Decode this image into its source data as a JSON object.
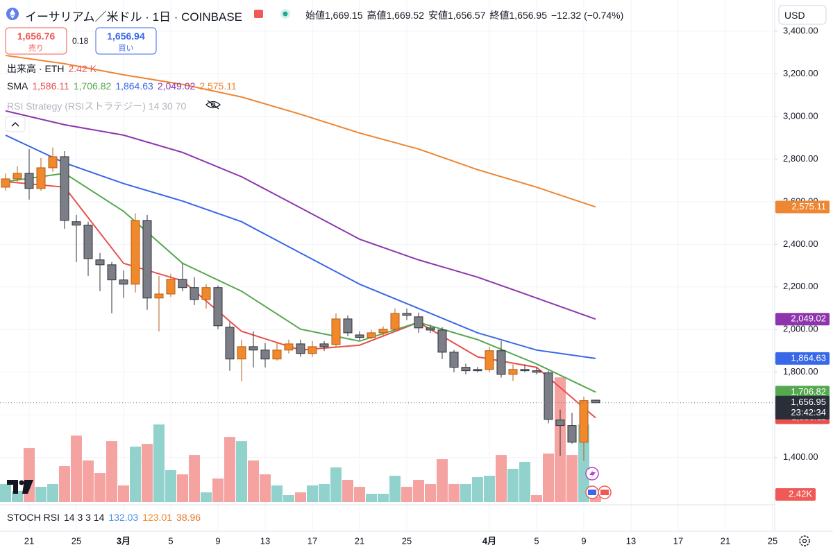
{
  "header": {
    "title": "イーサリアム／米ドル · 1日 · COINBASE",
    "ohlc": [
      {
        "label": "始値",
        "value": "1,669.15"
      },
      {
        "label": "高値",
        "value": "1,669.52"
      },
      {
        "label": "安値",
        "value": "1,656.57"
      },
      {
        "label": "終値",
        "value": "1,656.95"
      }
    ],
    "change": "−12.32 (−0.74%)",
    "currency": "USD",
    "sell": {
      "price": "1,656.76",
      "label": "売り"
    },
    "spread": 0.18,
    "buy": {
      "price": "1,656.94",
      "label": "買い"
    },
    "indicator": "RSI Strategy (RSIストラテジー) 14 30 70"
  },
  "chart_data": {
    "type": "candlestick",
    "x": [
      "02-19",
      "02-20",
      "02-21",
      "02-22",
      "02-23",
      "02-24",
      "02-25",
      "02-26",
      "02-27",
      "02-28",
      "03-01",
      "03-02",
      "03-03",
      "03-04",
      "03-05",
      "03-06",
      "03-07",
      "03-08",
      "03-09",
      "03-10",
      "03-11",
      "03-12",
      "03-13",
      "03-14",
      "03-15",
      "03-16",
      "03-17",
      "03-18",
      "03-19",
      "03-20",
      "03-21",
      "03-22",
      "03-23",
      "03-24",
      "03-25",
      "03-26",
      "03-27",
      "03-28",
      "03-29",
      "03-30",
      "03-31",
      "04-01",
      "04-02",
      "04-03",
      "04-04",
      "04-05",
      "04-06",
      "04-07",
      "04-08",
      "04-09",
      "04-10"
    ],
    "open": [
      2668,
      2707,
      2733,
      2662,
      2759,
      2811,
      2506,
      2490,
      2327,
      2304,
      2233,
      2213,
      2512,
      2148,
      2167,
      2236,
      2197,
      2141,
      2197,
      2011,
      1862,
      1920,
      1904,
      1862,
      1904,
      1933,
      1888,
      1933,
      1930,
      2050,
      1975,
      1963,
      1985,
      2002,
      2076,
      2060,
      2008,
      1998,
      1894,
      1823,
      1813,
      1813,
      1901,
      1790,
      1813,
      1807,
      1797,
      1576,
      1550,
      1472,
      1669.15
    ],
    "high": [
      2733,
      2766,
      2847,
      2805,
      2854,
      2837,
      2538,
      2506,
      2359,
      2317,
      2278,
      2545,
      2538,
      2252,
      2262,
      2311,
      2246,
      2213,
      2207,
      2034,
      1953,
      1992,
      1937,
      1937,
      1953,
      1953,
      1946,
      1946,
      2076,
      2067,
      1992,
      1998,
      2015,
      2099,
      2099,
      2080,
      2020,
      2011,
      1904,
      1840,
      1825,
      1920,
      1946,
      1837,
      1837,
      1822,
      1807,
      1625,
      1610,
      1686,
      1669.52
    ],
    "low": [
      2652,
      2694,
      2610,
      2652,
      2740,
      2473,
      2317,
      2252,
      2180,
      2076,
      2148,
      2174,
      2093,
      1992,
      2154,
      2180,
      2115,
      2099,
      2002,
      1807,
      1758,
      1823,
      1823,
      1855,
      1888,
      1872,
      1872,
      1900,
      1920,
      1969,
      1950,
      1955,
      1970,
      1995,
      2045,
      1985,
      1985,
      1862,
      1800,
      1790,
      1800,
      1800,
      1775,
      1760,
      1800,
      1790,
      1560,
      1407,
      1465,
      1384,
      1656.57
    ],
    "close": [
      2707,
      2733,
      2662,
      2759,
      2811,
      2512,
      2490,
      2333,
      2304,
      2233,
      2213,
      2512,
      2148,
      2167,
      2236,
      2197,
      2141,
      2197,
      2018,
      1862,
      1920,
      1904,
      1862,
      1904,
      1933,
      1888,
      1920,
      1920,
      2050,
      1985,
      1963,
      1985,
      2002,
      2076,
      2067,
      2008,
      1998,
      1894,
      1823,
      1807,
      1807,
      1901,
      1790,
      1813,
      1807,
      1800,
      1579,
      1550,
      1472,
      1667,
      1656.95
    ],
    "up_color": "#f0892c",
    "up_border": "#b85a14",
    "down_color": "#7b7e86",
    "down_border": "#2f3238",
    "last_label": {
      "close": "1,656.95",
      "countdown": "23:42:34",
      "color": "#2a2e39"
    },
    "ylim": [
      1178,
      3546
    ],
    "yticks": [
      {
        "value": 1400,
        "label": "1,400.00"
      },
      {
        "value": 1600,
        "label": "1,600.00"
      },
      {
        "value": 1800,
        "label": "1,800.00"
      },
      {
        "value": 2000,
        "label": "2,000.00"
      },
      {
        "value": 2200,
        "label": "2,200.00"
      },
      {
        "value": 2400,
        "label": "2,400.00"
      },
      {
        "value": 2600,
        "label": "2,600.00"
      },
      {
        "value": 2800,
        "label": "2,800.00"
      },
      {
        "value": 3000,
        "label": "3,000.00"
      },
      {
        "value": 3200,
        "label": "3,200.00"
      },
      {
        "value": 3400,
        "label": "3,400.00"
      }
    ],
    "xticks": [
      {
        "value": "02-21",
        "label": "21"
      },
      {
        "value": "02-25",
        "label": "25"
      },
      {
        "value": "03-01",
        "label": "3月"
      },
      {
        "value": "03-05",
        "label": "5"
      },
      {
        "value": "03-09",
        "label": "9"
      },
      {
        "value": "03-13",
        "label": "13"
      },
      {
        "value": "03-17",
        "label": "17"
      },
      {
        "value": "03-21",
        "label": "21"
      },
      {
        "value": "03-25",
        "label": "25"
      },
      {
        "value": "04-01",
        "label": "4月"
      },
      {
        "value": "04-05",
        "label": "5"
      },
      {
        "value": "04-09",
        "label": "9"
      },
      {
        "value": "04-13",
        "label": "13"
      },
      {
        "value": "04-17",
        "label": "17"
      },
      {
        "value": "04-21",
        "label": "21"
      },
      {
        "value": "04-25",
        "label": "25"
      }
    ],
    "grid": true,
    "sma": {
      "name": "SMA",
      "x": [
        "02-19",
        "02-24",
        "03-01",
        "03-06",
        "03-11",
        "03-16",
        "03-21",
        "03-26",
        "03-31",
        "04-05",
        "04-10"
      ],
      "series": [
        {
          "color": "#e8504b",
          "values": [
            2694,
            2668,
            2311,
            2229,
            1992,
            1904,
            1927,
            2034,
            1872,
            1823,
            1586.11
          ],
          "value_labels": [
            null,
            null,
            null,
            null,
            null,
            null,
            null,
            null,
            null,
            null,
            "1,586.11"
          ]
        },
        {
          "color": "#55a84f",
          "values": [
            2694,
            2733,
            2555,
            2311,
            2180,
            2002,
            1946,
            2034,
            1953,
            1839,
            1706.82
          ],
          "value_labels": [
            null,
            null,
            null,
            null,
            null,
            null,
            null,
            null,
            null,
            null,
            "1,706.82"
          ]
        },
        {
          "color": "#3868e8",
          "values": [
            2912,
            2782,
            2685,
            2603,
            2506,
            2359,
            2213,
            2099,
            1985,
            1904,
            1864.63
          ],
          "value_labels": [
            null,
            null,
            null,
            null,
            null,
            null,
            null,
            null,
            null,
            null,
            "1,864.63"
          ]
        },
        {
          "color": "#8e35ad",
          "values": [
            3026,
            2961,
            2912,
            2831,
            2717,
            2571,
            2424,
            2327,
            2246,
            2148,
            2049.02
          ],
          "value_labels": [
            null,
            null,
            null,
            null,
            null,
            null,
            null,
            null,
            null,
            null,
            "2,049.02"
          ]
        },
        {
          "color": "#ee8632",
          "values": [
            3286,
            3247,
            3195,
            3150,
            3091,
            3010,
            2922,
            2847,
            2750,
            2668,
            2575.11
          ],
          "value_labels": [
            null,
            null,
            null,
            null,
            null,
            null,
            null,
            null,
            null,
            null,
            "2,575.11"
          ]
        }
      ]
    },
    "volume": {
      "name": "出来高 · ETH",
      "legend_value": "2.42 K",
      "tag_color": "#f05a56",
      "ylim": [
        0,
        100
      ],
      "values": [
        7.8,
        4.8,
        23.4,
        6.6,
        7.8,
        15.6,
        28.8,
        18,
        12.6,
        26.4,
        7.2,
        24,
        25.2,
        33.6,
        13.8,
        12,
        20.4,
        4.2,
        10.2,
        28.2,
        26.4,
        18,
        12,
        7.2,
        3,
        4.2,
        7.2,
        7.8,
        15,
        9.6,
        6.6,
        3.6,
        3.6,
        11.4,
        6.6,
        9.6,
        7.8,
        18.6,
        7.8,
        7.8,
        10.8,
        11.4,
        20.4,
        14.4,
        17.4,
        3,
        21,
        54,
        20.4,
        33.6,
        2.42
      ],
      "value_labels": [
        null,
        null,
        null,
        null,
        null,
        null,
        null,
        null,
        null,
        null,
        null,
        null,
        null,
        null,
        null,
        null,
        null,
        null,
        null,
        null,
        null,
        null,
        null,
        null,
        null,
        null,
        null,
        null,
        null,
        null,
        null,
        null,
        null,
        null,
        null,
        null,
        null,
        null,
        null,
        null,
        null,
        null,
        null,
        null,
        null,
        null,
        null,
        null,
        null,
        null,
        "2.42K"
      ],
      "colors": [
        "#92d2cc",
        "#92d2cc",
        "#f4a3a1",
        "#92d2cc",
        "#92d2cc",
        "#f4a3a1",
        "#f4a3a1",
        "#f4a3a1",
        "#f4a3a1",
        "#f4a3a1",
        "#f4a3a1",
        "#92d2cc",
        "#f4a3a1",
        "#92d2cc",
        "#92d2cc",
        "#f4a3a1",
        "#f4a3a1",
        "#92d2cc",
        "#f4a3a1",
        "#f4a3a1",
        "#92d2cc",
        "#f4a3a1",
        "#f4a3a1",
        "#92d2cc",
        "#92d2cc",
        "#f4a3a1",
        "#92d2cc",
        "#92d2cc",
        "#92d2cc",
        "#f4a3a1",
        "#f4a3a1",
        "#92d2cc",
        "#92d2cc",
        "#92d2cc",
        "#f4a3a1",
        "#f4a3a1",
        "#f4a3a1",
        "#f4a3a1",
        "#f4a3a1",
        "#92d2cc",
        "#92d2cc",
        "#92d2cc",
        "#f4a3a1",
        "#92d2cc",
        "#92d2cc",
        "#f4a3a1",
        "#f4a3a1",
        "#f4a3a1",
        "#f4a3a1",
        "#92d2cc",
        "#f4a3a1"
      ]
    },
    "stoch_rsi": {
      "name": "STOCH RSI",
      "params": "14 3 3 14",
      "values": [
        132.03,
        123.01,
        38.96
      ],
      "colors": [
        "#4a90e2",
        "#f0892c",
        "#e5772a"
      ]
    }
  }
}
